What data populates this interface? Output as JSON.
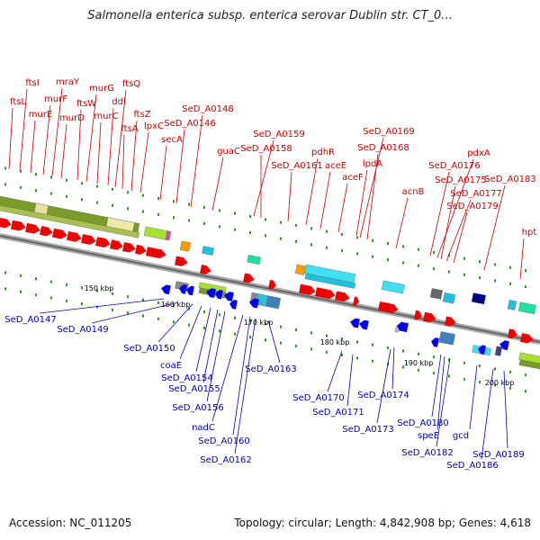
{
  "header": {
    "title": "Salmonella enterica subsp. enterica serovar Dublin str. CT_0..."
  },
  "footer": {
    "accession": "Accession: NC_011205",
    "stats": "Topology: circular; Length: 4,842,908 bp; Genes: 4,618"
  },
  "colors": {
    "top_label": "#cc0000",
    "bottom_label": "#0000bb",
    "forward_gene": "#ee0000",
    "reverse_gene": "#0000ee",
    "backbone": "#888888"
  },
  "scale": {
    "ticks": [
      "150 kbp",
      "160 kbp",
      "170 kbp",
      "180 kbp",
      "190 kbp",
      "200 kbp"
    ]
  },
  "genes_forward": [
    "ftsL",
    "ftsI",
    "murE",
    "murF",
    "mraY",
    "murD",
    "ftsW",
    "murG",
    "murC",
    "ddl",
    "ftsQ",
    "ftsA",
    "ftsZ",
    "lpxC",
    "secA",
    "SeD_A0146",
    "SeD_A0148",
    "guaC",
    "SeD_A0159",
    "SeD_A0158",
    "SeD_A0161",
    "pdhR",
    "aceE",
    "aceF",
    "lpdA",
    "SeD_A0169",
    "SeD_A0168",
    "acnB",
    "SeD_A0176",
    "pdxA",
    "SeD_A0175",
    "SeD_A0177",
    "SeD_A0179",
    "SeD_A0183",
    "hpt"
  ],
  "genes_reverse": [
    "SeD_A0147",
    "SeD_A0149",
    "SeD_A0150",
    "coaE",
    "SeD_A0154",
    "SeD_A0155",
    "SeD_A0156",
    "nadC",
    "SeD_A0160",
    "SeD_A0162",
    "SeD_A0163",
    "SeD_A0170",
    "SeD_A0171",
    "SeD_A0174",
    "SeD_A0173",
    "SeD_A0180",
    "speE",
    "SeD_A0182",
    "gcd",
    "SeD_A0186",
    "SeD_A0189"
  ]
}
